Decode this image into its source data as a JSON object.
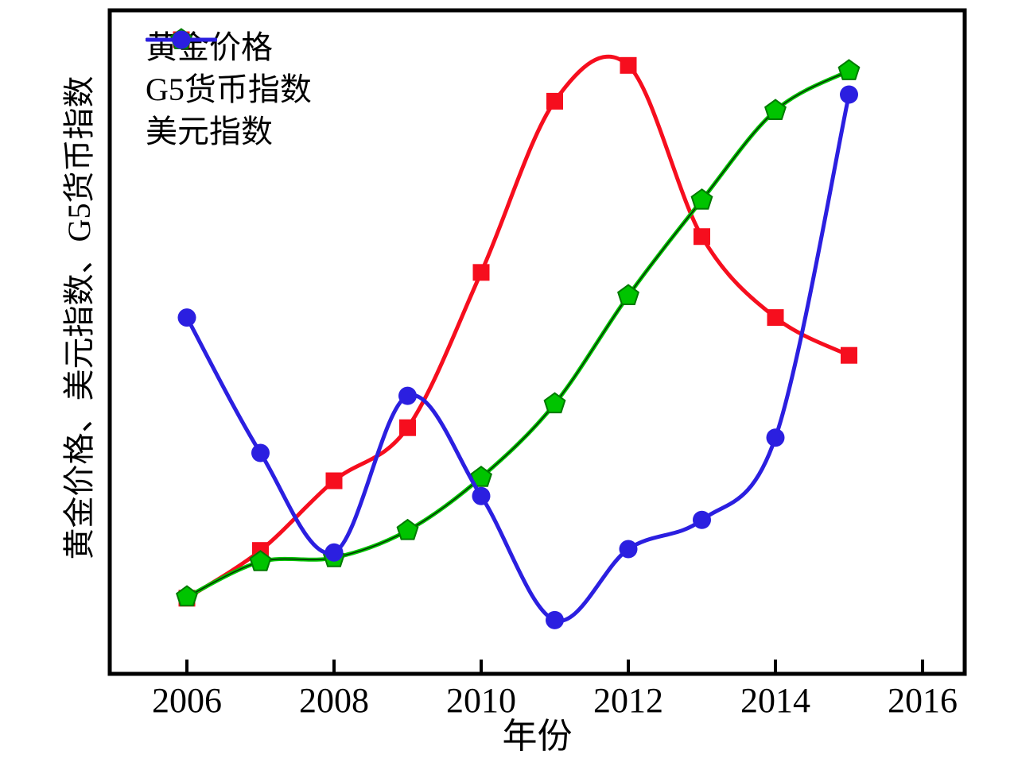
{
  "figure": {
    "background": "#ffffff",
    "frame_color": "#000000"
  },
  "axes": {
    "xlabel": "年份",
    "ylabel": "黄金价格、美元指数、G5货币指数",
    "xticks": [
      "2006",
      "2008",
      "2010",
      "2012",
      "2014",
      "2016"
    ],
    "x_range": [
      2005,
      2016.6
    ],
    "y_range": [
      0,
      100
    ],
    "yticks": [],
    "grid": "off"
  },
  "chart_data": {
    "type": "line",
    "title": "",
    "xlabel": "年份",
    "ylabel": "黄金价格、美元指数、G5货币指数",
    "legend_position": "upper-left",
    "x": [
      2006,
      2007,
      2008,
      2009,
      2010,
      2011,
      2012,
      2013,
      2014,
      2015
    ],
    "series": [
      {
        "name": "黄金价格",
        "color": "#F60E1E",
        "marker": "square",
        "values": [
          11.4,
          18.6,
          29.1,
          37.1,
          60.5,
          86.3,
          91.7,
          65.9,
          53.7,
          48.0
        ]
      },
      {
        "name": "G5货币指数",
        "color": "#00C400",
        "marker": "pentagon",
        "marker_edge": "#007A00",
        "line_core": "#062E06",
        "values": [
          11.6,
          16.9,
          17.5,
          21.6,
          29.6,
          40.7,
          57.0,
          71.4,
          84.9,
          90.9
        ]
      },
      {
        "name": "美元指数",
        "color": "#2B1FE0",
        "marker": "circle",
        "values": [
          53.7,
          33.3,
          18.3,
          41.9,
          26.8,
          8.1,
          18.8,
          23.2,
          35.6,
          87.3
        ]
      }
    ],
    "ylim_note": "y axis has no tick labels; values are relative position (0-100) inside plot box"
  }
}
